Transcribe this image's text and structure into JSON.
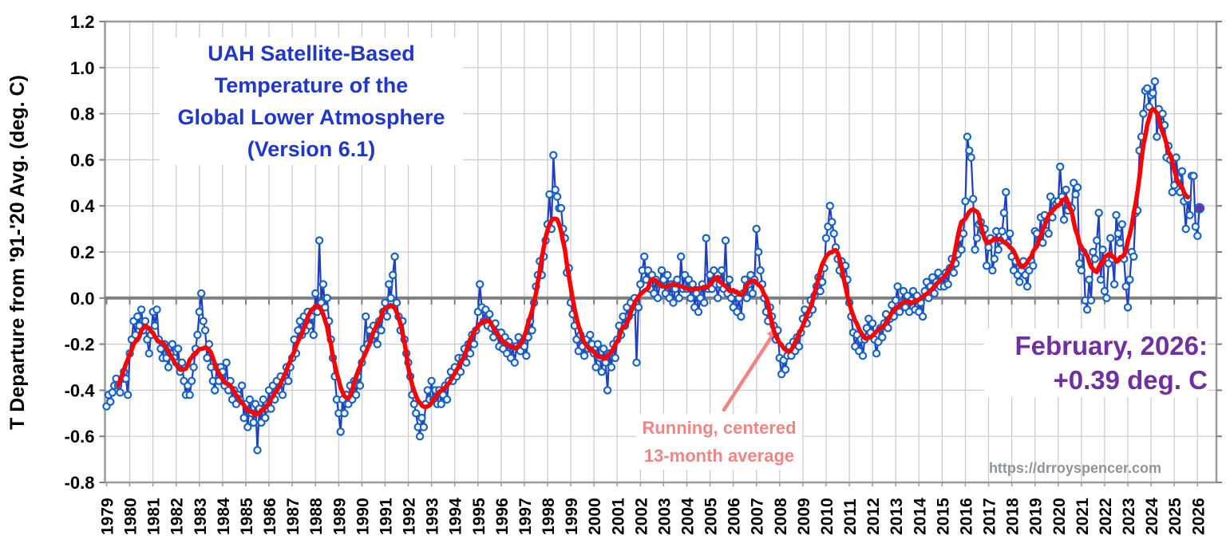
{
  "page": {
    "background": "#FFFFFF"
  },
  "chart_data": {
    "type": "line",
    "title_lines": [
      "UAH Satellite-Based",
      "Temperature of the",
      "Global Lower Atmosphere",
      "(Version 6.1)"
    ],
    "y_axis": {
      "label": "T Departure from '91-'20 Avg. (deg. C)",
      "min": -0.8,
      "max": 1.2,
      "tick_step": 0.2,
      "tick_labels": [
        "1.2",
        "1.0",
        "0.8",
        "0.6",
        "0.4",
        "0.2",
        "0.0",
        "-0.2",
        "-0.4",
        "-0.6",
        "-0.8"
      ]
    },
    "x_axis": {
      "start_year": 1979,
      "end_year": 2026,
      "tick_labels": [
        "1979",
        "1980",
        "1981",
        "1982",
        "1983",
        "1984",
        "1985",
        "1986",
        "1987",
        "1988",
        "1989",
        "1990",
        "1991",
        "1992",
        "1993",
        "1994",
        "1995",
        "1996",
        "1997",
        "1998",
        "1999",
        "2000",
        "2001",
        "2002",
        "2003",
        "2004",
        "2005",
        "2006",
        "2007",
        "2008",
        "2009",
        "2010",
        "2011",
        "2012",
        "2013",
        "2014",
        "2015",
        "2016",
        "2017",
        "2018",
        "2019",
        "2020",
        "2021",
        "2022",
        "2023",
        "2024",
        "2025",
        "2026"
      ]
    },
    "grid": {
      "show": true
    },
    "legend": {
      "show": false
    },
    "series": [
      {
        "name": "Monthly global lower-atmosphere temperature anomaly",
        "style": "line-with-open-circle-markers",
        "monthly_by_year": {
          "1979": [
            -0.47,
            -0.42,
            -0.45,
            -0.41,
            -0.38,
            -0.35,
            -0.38,
            -0.41,
            -0.35,
            -0.32,
            -0.35,
            -0.42
          ],
          "1980": [
            -0.24,
            -0.18,
            -0.1,
            -0.16,
            -0.08,
            -0.12,
            -0.05,
            -0.14,
            -0.1,
            -0.18,
            -0.24,
            -0.16
          ],
          "1981": [
            -0.06,
            -0.12,
            -0.05,
            -0.18,
            -0.22,
            -0.26,
            -0.2,
            -0.26,
            -0.3,
            -0.24,
            -0.2,
            -0.26
          ],
          "1982": [
            -0.28,
            -0.22,
            -0.32,
            -0.28,
            -0.36,
            -0.42,
            -0.38,
            -0.42,
            -0.36,
            -0.3,
            -0.22,
            -0.16
          ],
          "1983": [
            -0.06,
            0.02,
            -0.1,
            -0.14,
            -0.26,
            -0.2,
            -0.3,
            -0.36,
            -0.4,
            -0.3,
            -0.36,
            -0.3
          ],
          "1984": [
            -0.32,
            -0.38,
            -0.28,
            -0.4,
            -0.36,
            -0.44,
            -0.4,
            -0.46,
            -0.42,
            -0.44,
            -0.38,
            -0.52
          ],
          "1985": [
            -0.46,
            -0.56,
            -0.44,
            -0.5,
            -0.54,
            -0.46,
            -0.66,
            -0.48,
            -0.54,
            -0.44,
            -0.52,
            -0.48
          ],
          "1986": [
            -0.4,
            -0.48,
            -0.38,
            -0.44,
            -0.36,
            -0.4,
            -0.34,
            -0.42,
            -0.36,
            -0.3,
            -0.36,
            -0.3
          ],
          "1987": [
            -0.26,
            -0.18,
            -0.24,
            -0.14,
            -0.1,
            -0.16,
            -0.08,
            -0.14,
            -0.06,
            -0.12,
            -0.08,
            -0.16
          ],
          "1988": [
            0.02,
            -0.06,
            0.25,
            -0.02,
            0.06,
            -0.04,
            0.0,
            -0.1,
            -0.18,
            -0.26,
            -0.34,
            -0.44
          ],
          "1989": [
            -0.5,
            -0.58,
            -0.44,
            -0.5,
            -0.42,
            -0.46,
            -0.38,
            -0.44,
            -0.36,
            -0.42,
            -0.34,
            -0.38
          ],
          "1990": [
            -0.28,
            -0.22,
            -0.08,
            -0.2,
            -0.14,
            -0.18,
            -0.12,
            -0.16,
            -0.2,
            -0.1,
            -0.14,
            -0.06
          ],
          "1991": [
            -0.02,
            -0.08,
            0.06,
            0.0,
            0.1,
            0.18,
            -0.02,
            -0.08,
            -0.14,
            -0.1,
            -0.18,
            -0.24
          ],
          "1992": [
            -0.28,
            -0.34,
            -0.42,
            -0.46,
            -0.5,
            -0.56,
            -0.6,
            -0.52,
            -0.56,
            -0.46,
            -0.4,
            -0.44
          ],
          "1993": [
            -0.36,
            -0.44,
            -0.4,
            -0.46,
            -0.4,
            -0.46,
            -0.42,
            -0.38,
            -0.44,
            -0.36,
            -0.32,
            -0.36
          ],
          "1994": [
            -0.3,
            -0.34,
            -0.26,
            -0.32,
            -0.26,
            -0.22,
            -0.28,
            -0.2,
            -0.24,
            -0.16,
            -0.2,
            -0.14
          ],
          "1995": [
            -0.06,
            0.06,
            -0.04,
            -0.1,
            -0.05,
            -0.12,
            -0.07,
            -0.13,
            -0.17,
            -0.11,
            -0.15,
            -0.21
          ],
          "1996": [
            -0.15,
            -0.22,
            -0.17,
            -0.24,
            -0.19,
            -0.26,
            -0.21,
            -0.28,
            -0.21,
            -0.17,
            -0.23,
            -0.19
          ],
          "1997": [
            -0.21,
            -0.25,
            -0.17,
            -0.1,
            -0.14,
            -0.02,
            0.05,
            0.1,
            0.16,
            0.1,
            0.18,
            0.25
          ],
          "1998": [
            0.32,
            0.45,
            0.3,
            0.62,
            0.47,
            0.44,
            0.39,
            0.39,
            0.3,
            0.26,
            0.11,
            0.13
          ],
          "1999": [
            -0.02,
            -0.07,
            -0.12,
            -0.18,
            -0.23,
            -0.16,
            -0.21,
            -0.25,
            -0.18,
            -0.22,
            -0.16,
            -0.2
          ],
          "2000": [
            -0.24,
            -0.3,
            -0.2,
            -0.26,
            -0.32,
            -0.22,
            -0.28,
            -0.4,
            -0.24,
            -0.3,
            -0.2,
            -0.26
          ],
          "2001": [
            -0.18,
            -0.12,
            -0.16,
            -0.08,
            -0.12,
            -0.04,
            -0.08,
            -0.02,
            -0.06,
            0.0,
            -0.28,
            -0.04
          ],
          "2002": [
            0.06,
            0.12,
            0.18,
            0.08,
            0.12,
            0.04,
            0.1,
            0.02,
            0.08,
            0.0,
            0.06,
            0.12
          ],
          "2003": [
            0.08,
            0.02,
            0.1,
            0.0,
            0.06,
            -0.02,
            0.04,
            0.08,
            0.0,
            0.18,
            0.04,
            0.1
          ],
          "2004": [
            0.04,
            0.08,
            0.0,
            0.06,
            -0.04,
            0.02,
            -0.06,
            0.0,
            0.06,
            -0.02,
            0.26,
            0.04
          ],
          "2005": [
            0.1,
            0.04,
            0.12,
            0.06,
            0.0,
            0.06,
            0.12,
            0.04,
            0.25,
            0.02,
            0.08,
            0.0
          ],
          "2006": [
            -0.04,
            0.02,
            -0.06,
            0.0,
            -0.08,
            0.02,
            0.08,
            0.0,
            0.06,
            0.1,
            0.02,
            0.08
          ],
          "2007": [
            0.3,
            0.2,
            0.12,
            0.06,
            0.0,
            -0.06,
            -0.1,
            -0.04,
            -0.08,
            -0.12,
            -0.18,
            -0.14
          ],
          "2008": [
            -0.26,
            -0.33,
            -0.27,
            -0.31,
            -0.25,
            -0.21,
            -0.25,
            -0.19,
            -0.23,
            -0.17,
            -0.21,
            -0.15
          ],
          "2009": [
            -0.09,
            -0.05,
            -0.11,
            -0.07,
            -0.01,
            -0.05,
            0.01,
            0.05,
            0.09,
            0.03,
            0.07,
            0.13
          ],
          "2010": [
            0.26,
            0.31,
            0.4,
            0.33,
            0.28,
            0.22,
            0.17,
            0.12,
            0.16,
            0.1,
            0.14,
            0.08
          ],
          "2011": [
            -0.02,
            -0.08,
            -0.15,
            -0.21,
            -0.16,
            -0.23,
            -0.18,
            -0.25,
            -0.18,
            -0.13,
            -0.09,
            -0.15
          ],
          "2012": [
            -0.11,
            -0.18,
            -0.24,
            -0.19,
            -0.13,
            -0.17,
            -0.11,
            -0.07,
            -0.13,
            -0.09,
            -0.03,
            -0.08
          ],
          "2013": [
            -0.01,
            0.05,
            -0.06,
            -0.02,
            0.03,
            -0.04,
            0.01,
            -0.06,
            -0.01,
            0.03,
            -0.05,
            0.01
          ],
          "2014": [
            -0.06,
            -0.02,
            -0.08,
            0.03,
            0.07,
            0.0,
            0.05,
            0.09,
            0.02,
            0.07,
            0.11,
            0.05
          ],
          "2015": [
            0.09,
            0.05,
            0.11,
            0.06,
            0.13,
            0.17,
            0.11,
            0.15,
            0.19,
            0.26,
            0.21,
            0.28
          ],
          "2016": [
            0.42,
            0.7,
            0.64,
            0.61,
            0.43,
            0.21,
            0.26,
            0.32,
            0.33,
            0.29,
            0.3,
            0.14
          ],
          "2017": [
            0.22,
            0.26,
            0.12,
            0.17,
            0.29,
            0.21,
            0.25,
            0.29,
            0.37,
            0.46,
            0.24,
            0.28
          ],
          "2018": [
            0.18,
            0.12,
            0.16,
            0.1,
            0.07,
            0.12,
            0.16,
            0.1,
            0.05,
            0.12,
            0.16,
            0.14
          ],
          "2019": [
            0.29,
            0.28,
            0.25,
            0.35,
            0.24,
            0.36,
            0.29,
            0.28,
            0.44,
            0.35,
            0.42,
            0.41
          ],
          "2020": [
            0.42,
            0.57,
            0.44,
            0.34,
            0.47,
            0.38,
            0.4,
            0.39,
            0.5,
            0.45,
            0.48,
            0.15
          ],
          "2021": [
            0.12,
            0.2,
            -0.01,
            -0.05,
            0.08,
            -0.01,
            0.2,
            0.17,
            0.25,
            0.37,
            0.08,
            0.21
          ],
          "2022": [
            0.03,
            0.0,
            0.15,
            0.26,
            0.17,
            0.06,
            0.36,
            0.28,
            0.24,
            0.32,
            0.17,
            0.05
          ],
          "2023": [
            -0.04,
            0.08,
            0.2,
            0.18,
            0.37,
            0.38,
            0.64,
            0.7,
            0.8,
            0.9,
            0.91,
            0.83
          ],
          "2024": [
            0.88,
            0.89,
            0.94,
            0.7,
            0.82,
            0.75,
            0.8,
            0.75,
            0.61,
            0.66,
            0.6,
            0.46
          ],
          "2025": [
            0.49,
            0.61,
            0.52,
            0.46,
            0.55,
            0.42,
            0.3,
            0.43,
            0.36,
            0.53,
            0.53,
            0.31
          ],
          "2026": [
            0.27,
            0.39
          ]
        }
      },
      {
        "name": "Running, centered 13-month average",
        "style": "thick-smooth-line",
        "derivation": "centered 13-month mean of the monthly series"
      }
    ],
    "last_point": {
      "month": "February",
      "year": 2026,
      "value": 0.39
    }
  },
  "annotations": {
    "latest": {
      "line1": "February, 2026:",
      "line2": "+0.39 deg. C"
    },
    "average_label": {
      "line1": "Running, centered",
      "line2": "13-month average"
    },
    "watermark": {
      "text": "https://drroyspencer.com"
    }
  },
  "colors": {
    "title": "#2038C8",
    "monthly_line": "#1F3FBE",
    "monthly_marker": "#1763C8",
    "marker_fill": "#FFFFFF",
    "average_line": "#FF0000",
    "latest_point": "#7030A0",
    "latest_text": "#7030A0",
    "average_label": "#F08586",
    "watermark": "#8F9499",
    "grid": "#CACACA",
    "border": "#9B9B9B",
    "zero_line": "#7F7F7F",
    "axis_text": "#000000"
  }
}
